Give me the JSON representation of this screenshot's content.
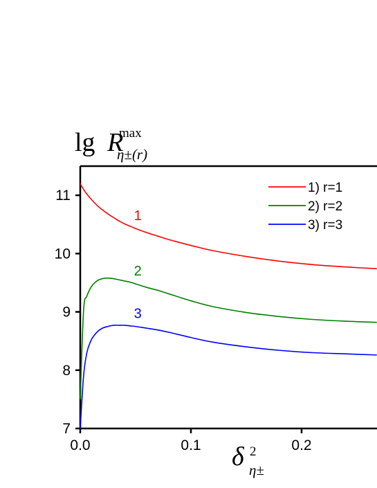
{
  "chart_data": {
    "type": "line",
    "ylabel": {
      "base": "lg",
      "symbol": "R",
      "superscript": "max",
      "subscript": "η±(r)"
    },
    "xlabel": {
      "symbol": "δ",
      "superscript": "2",
      "subscript": "η±"
    },
    "xlim": [
      0,
      0.268
    ],
    "ylim": [
      7,
      11.5
    ],
    "xticks": [
      "0.0",
      "0.1",
      "0.2"
    ],
    "yticks": [
      "7",
      "8",
      "9",
      "10",
      "11"
    ],
    "x": [
      0.0,
      0.003,
      0.006,
      0.01,
      0.015,
      0.02,
      0.025,
      0.03,
      0.035,
      0.04,
      0.045,
      0.05,
      0.06,
      0.07,
      0.08,
      0.1,
      0.12,
      0.15,
      0.18,
      0.21,
      0.24,
      0.268
    ],
    "series": [
      {
        "name": "1) r=1",
        "curve_label": "1",
        "color": "#ff0000",
        "values": [
          11.2,
          11.1,
          11.02,
          10.93,
          10.83,
          10.75,
          10.68,
          10.62,
          10.56,
          10.51,
          10.47,
          10.43,
          10.36,
          10.3,
          10.24,
          10.14,
          10.05,
          9.95,
          9.87,
          9.81,
          9.77,
          9.74
        ]
      },
      {
        "name": "2) r=2",
        "curve_label": "2",
        "color": "#008000",
        "values": [
          7.5,
          9.02,
          9.27,
          9.43,
          9.53,
          9.57,
          9.58,
          9.57,
          9.55,
          9.53,
          9.51,
          9.48,
          9.42,
          9.37,
          9.31,
          9.19,
          9.09,
          8.99,
          8.92,
          8.87,
          8.84,
          8.82
        ]
      },
      {
        "name": "3) r=3",
        "curve_label": "3",
        "color": "#0000ff",
        "values": [
          7.0,
          7.9,
          8.3,
          8.52,
          8.65,
          8.72,
          8.75,
          8.77,
          8.77,
          8.77,
          8.76,
          8.75,
          8.72,
          8.69,
          8.65,
          8.56,
          8.48,
          8.4,
          8.34,
          8.3,
          8.28,
          8.26
        ]
      }
    ],
    "legend": {
      "placement": "top-right",
      "items": [
        "1) r=1",
        "2) r=2",
        "3) r=3"
      ]
    },
    "grid": false
  }
}
